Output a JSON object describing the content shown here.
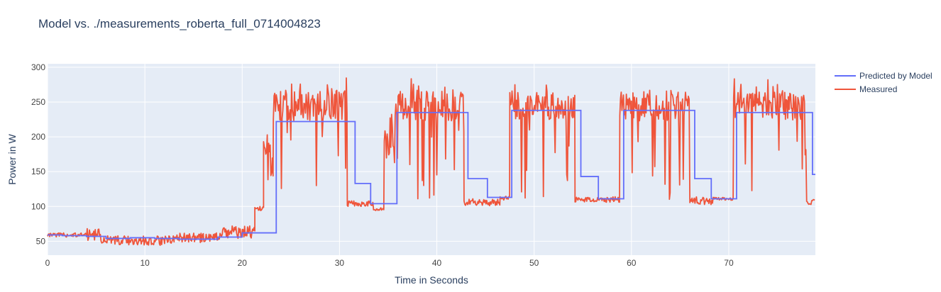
{
  "chart_data": {
    "type": "line",
    "title": "Model vs. ./measurements_roberta_full_0714004823",
    "xlabel": "Time in Seconds",
    "ylabel": "Power in W",
    "xlim": [
      0,
      78.9
    ],
    "ylim": [
      30,
      305
    ],
    "xticks": [
      0,
      10,
      20,
      30,
      40,
      50,
      60,
      70
    ],
    "yticks": [
      50,
      100,
      150,
      200,
      250,
      300
    ],
    "grid": true,
    "legend_position": "top-right",
    "background": "#e5ecf6",
    "series": [
      {
        "name": "Predicted by Model",
        "color": "#636efa",
        "step": true,
        "x": [
          0,
          1.5,
          4.0,
          6.0,
          8.5,
          11.0,
          13.5,
          15.5,
          17.5,
          20.0,
          23.5,
          31.6,
          33.2,
          35.9,
          43.2,
          45.2,
          47.7,
          54.8,
          56.6,
          59.2,
          66.5,
          68.2,
          70.8,
          78.6,
          78.9
        ],
        "y": [
          59,
          58,
          57,
          54,
          55,
          54,
          53,
          53,
          56,
          62,
          222,
          133,
          104,
          235,
          140,
          113,
          238,
          143,
          111,
          238,
          140,
          111,
          235,
          146,
          146
        ]
      },
      {
        "name": "Measured",
        "color": "#ef553b",
        "segments": [
          {
            "x0": 0.0,
            "x1": 4.0,
            "base": 59,
            "amp": 3,
            "spikes": 0,
            "seed": 3
          },
          {
            "x0": 4.0,
            "x1": 5.5,
            "base": 60,
            "amp": 9,
            "spikes": 0,
            "seed": 5
          },
          {
            "x0": 5.5,
            "x1": 13.0,
            "base": 51,
            "amp": 7,
            "spikes": 0,
            "seed": 7
          },
          {
            "x0": 13.0,
            "x1": 18.0,
            "base": 55,
            "amp": 7,
            "spikes": 0,
            "seed": 9
          },
          {
            "x0": 18.0,
            "x1": 21.3,
            "base": 63,
            "amp": 9,
            "spikes": 0,
            "seed": 11
          },
          {
            "x0": 21.3,
            "x1": 22.2,
            "base": 97,
            "amp": 3,
            "spikes": 0,
            "seed": 12
          },
          {
            "x0": 22.2,
            "x1": 23.2,
            "base": 160,
            "amp": 45,
            "spikes": 0,
            "seed": 14
          },
          {
            "x0": 23.2,
            "x1": 30.8,
            "base": 245,
            "amp": 22,
            "spikes": 0.14,
            "seed": 17
          },
          {
            "x0": 30.8,
            "x1": 33.5,
            "base": 104,
            "amp": 4,
            "spikes": 0,
            "seed": 19
          },
          {
            "x0": 33.5,
            "x1": 34.6,
            "base": 96,
            "amp": 2,
            "spikes": 0,
            "seed": 21
          },
          {
            "x0": 34.6,
            "x1": 35.8,
            "base": 200,
            "amp": 40,
            "spikes": 0,
            "seed": 23
          },
          {
            "x0": 35.8,
            "x1": 42.8,
            "base": 245,
            "amp": 22,
            "spikes": 0.14,
            "seed": 25
          },
          {
            "x0": 42.8,
            "x1": 46.5,
            "base": 106,
            "amp": 5,
            "spikes": 0,
            "seed": 27
          },
          {
            "x0": 46.5,
            "x1": 47.5,
            "base": 112,
            "amp": 3,
            "spikes": 0,
            "seed": 29
          },
          {
            "x0": 47.5,
            "x1": 54.2,
            "base": 245,
            "amp": 22,
            "spikes": 0.14,
            "seed": 31
          },
          {
            "x0": 54.2,
            "x1": 58.8,
            "base": 110,
            "amp": 4,
            "spikes": 0,
            "seed": 33
          },
          {
            "x0": 58.8,
            "x1": 66.0,
            "base": 245,
            "amp": 22,
            "spikes": 0.14,
            "seed": 35
          },
          {
            "x0": 66.0,
            "x1": 68.5,
            "base": 108,
            "amp": 6,
            "spikes": 0,
            "seed": 37
          },
          {
            "x0": 68.5,
            "x1": 70.5,
            "base": 111,
            "amp": 2,
            "spikes": 0,
            "seed": 39
          },
          {
            "x0": 70.5,
            "x1": 78.0,
            "base": 245,
            "amp": 22,
            "spikes": 0.14,
            "seed": 41
          },
          {
            "x0": 78.0,
            "x1": 78.9,
            "base": 106,
            "amp": 4,
            "spikes": 0,
            "seed": 43
          }
        ]
      }
    ]
  }
}
